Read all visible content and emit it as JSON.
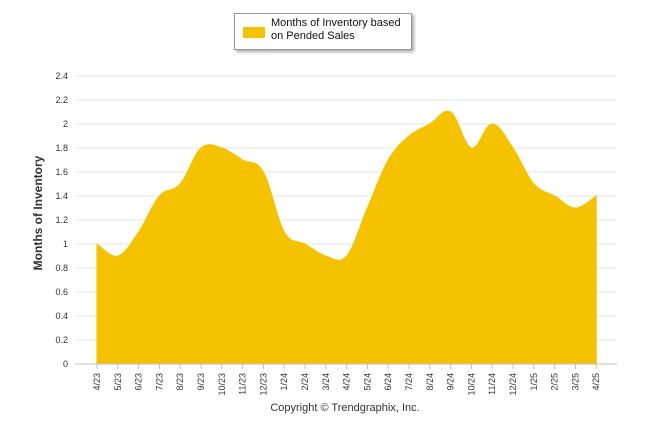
{
  "chart_data": {
    "type": "area",
    "ylabel": "Months of Inventory",
    "ylim": [
      0,
      2.4
    ],
    "yticks": [
      "0",
      "0.2",
      "0.4",
      "0.6",
      "0.8",
      "1",
      "1.2",
      "1.4",
      "1.6",
      "1.8",
      "2",
      "2.2",
      "2.4"
    ],
    "grid": true,
    "legend": {
      "position": "top-center",
      "label": "Months of Inventory based on Pended Sales"
    },
    "categories": [
      "4/23",
      "5/23",
      "6/23",
      "7/23",
      "8/23",
      "9/23",
      "10/23",
      "11/23",
      "12/23",
      "1/24",
      "2/24",
      "3/24",
      "4/24",
      "5/24",
      "6/24",
      "7/24",
      "8/24",
      "9/24",
      "10/24",
      "11/24",
      "12/24",
      "1/25",
      "2/25",
      "3/25",
      "4/25"
    ],
    "series": [
      {
        "name": "Months of Inventory based on Pended Sales",
        "color": "#F5C200",
        "values": [
          1.0,
          0.9,
          1.1,
          1.4,
          1.5,
          1.8,
          1.8,
          1.7,
          1.6,
          1.1,
          1.0,
          0.9,
          0.9,
          1.3,
          1.7,
          1.9,
          2.0,
          2.1,
          1.8,
          2.0,
          1.8,
          1.5,
          1.4,
          1.3,
          1.4
        ]
      }
    ]
  },
  "footer": {
    "copyright": "Copyright © Trendgraphix, Inc."
  }
}
